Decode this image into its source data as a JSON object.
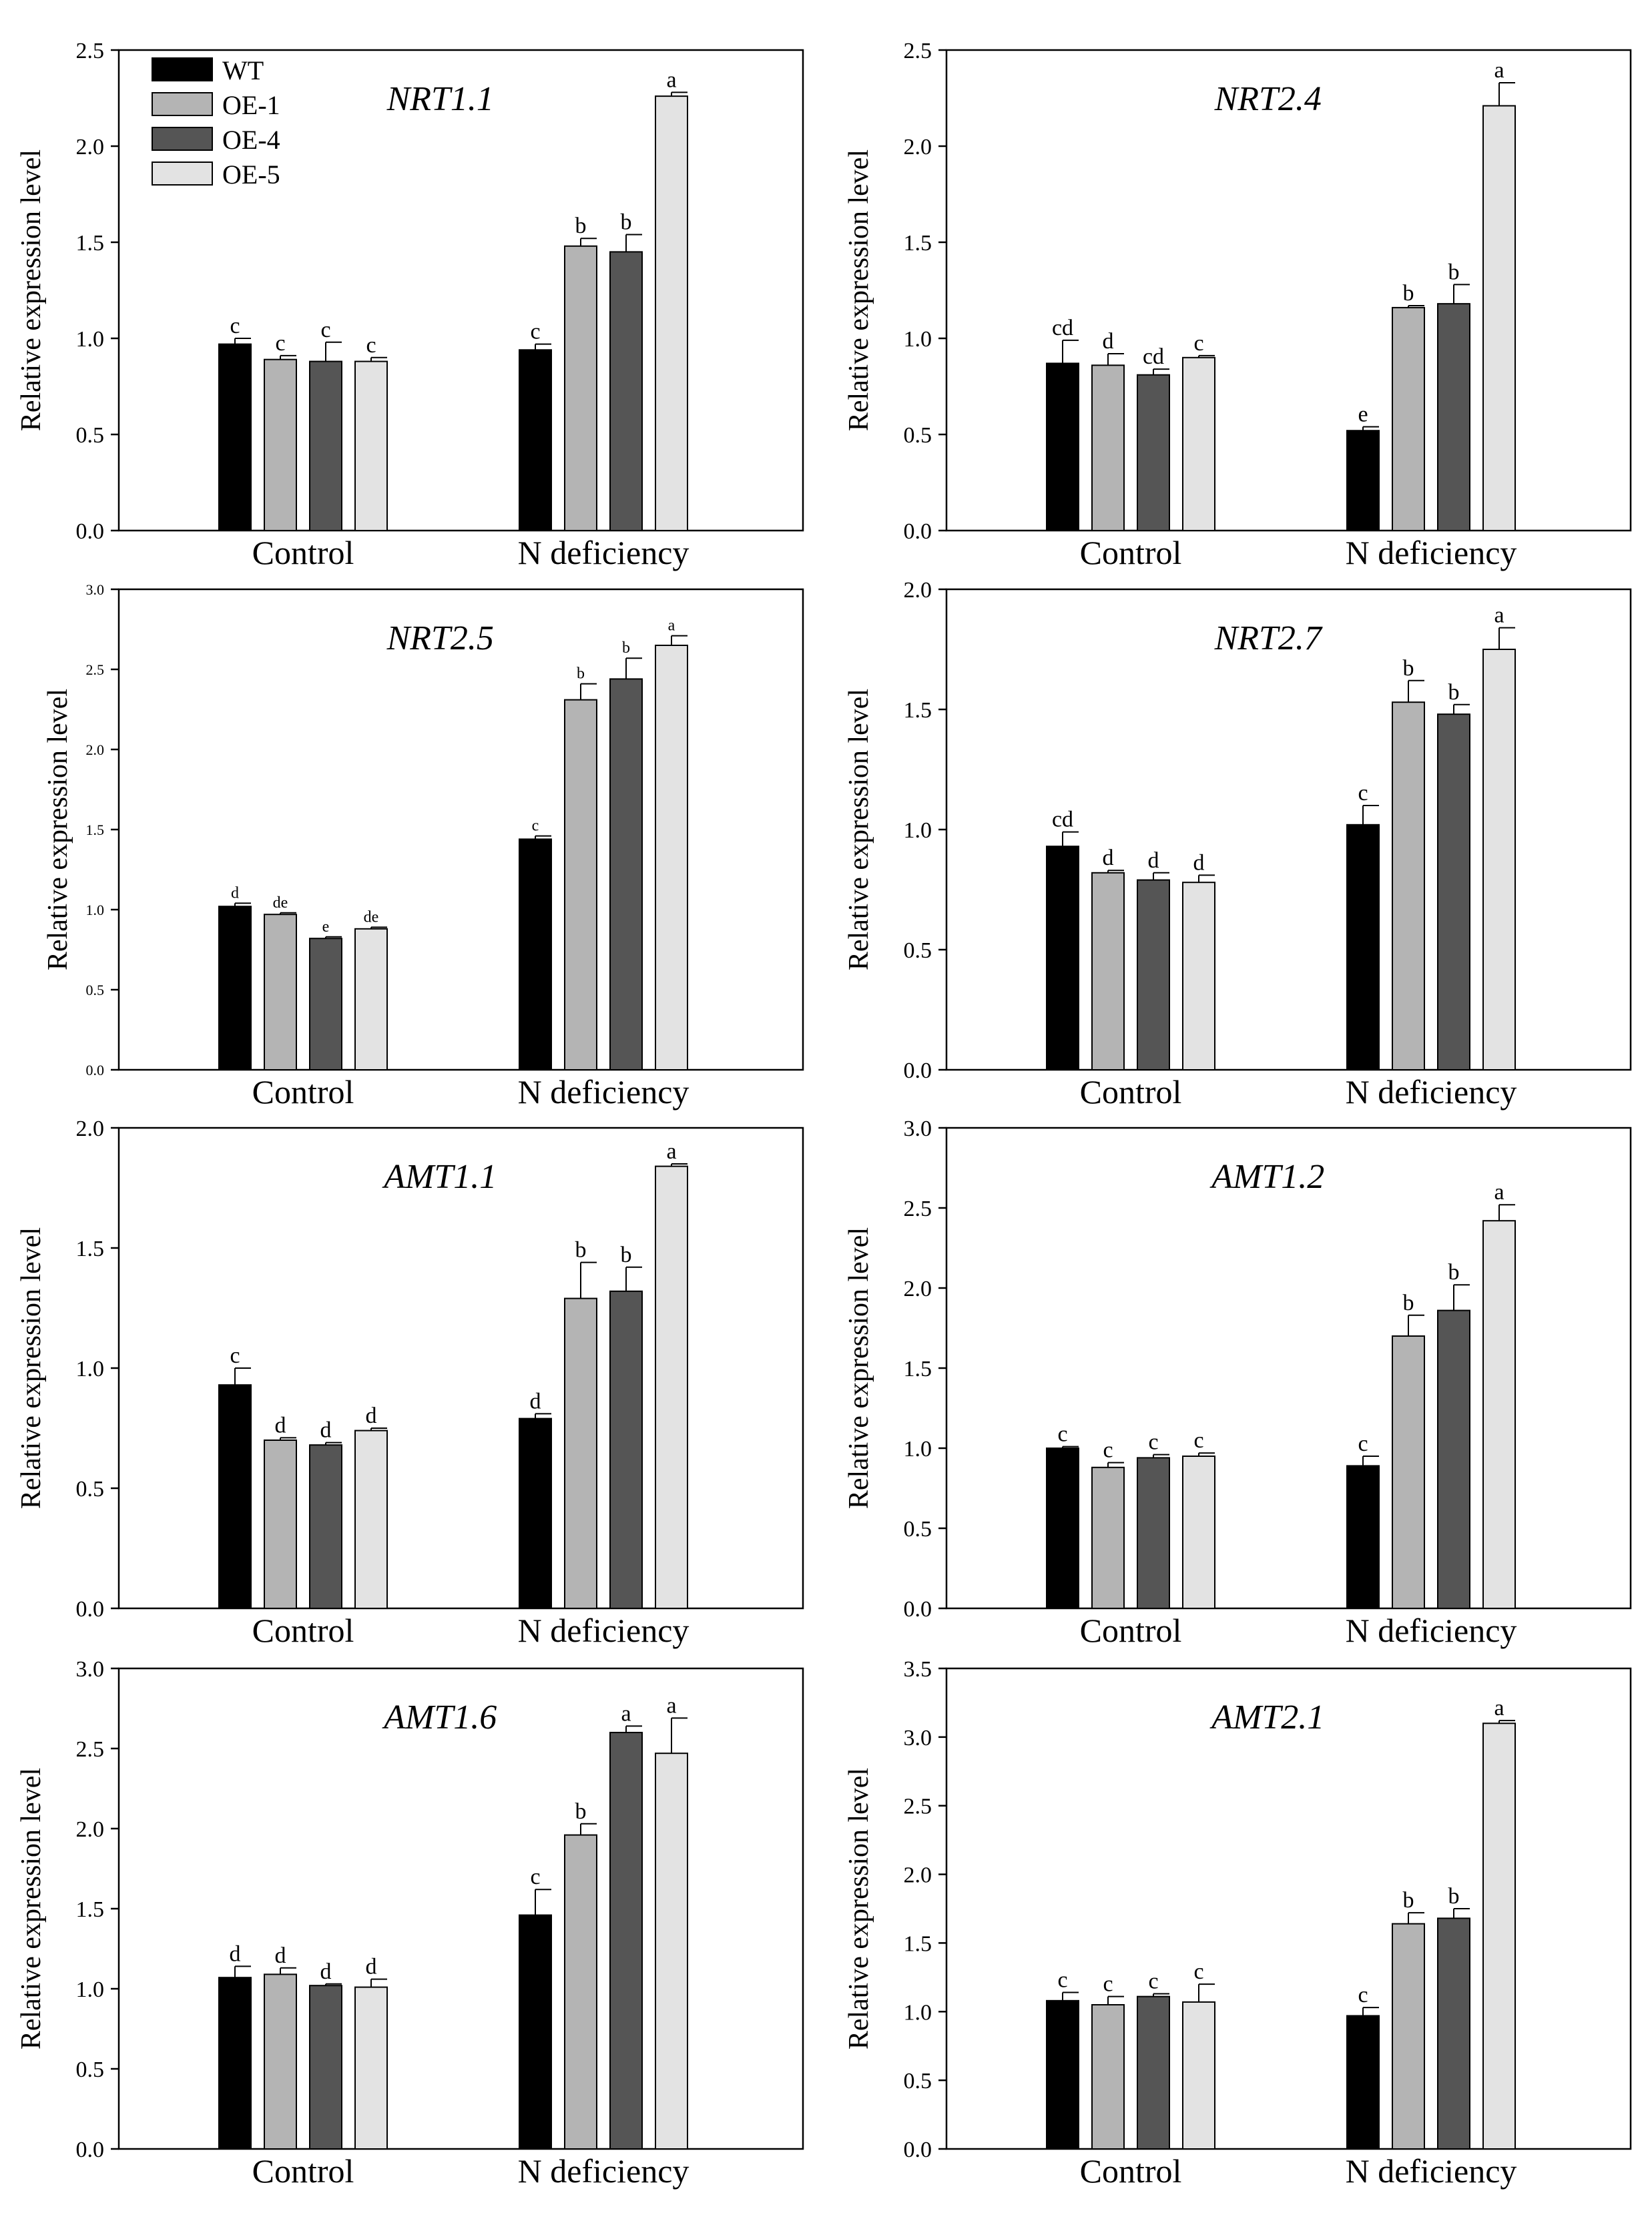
{
  "figure": {
    "groups": [
      "Control",
      "N deficiency"
    ],
    "ylabel": "Relative expression level",
    "legend": [
      {
        "label": "WT",
        "color": "#000000"
      },
      {
        "label": "OE-1",
        "color": "#b4b4b4"
      },
      {
        "label": "OE-4",
        "color": "#555555"
      },
      {
        "label": "OE-5",
        "color": "#e3e3e3"
      }
    ]
  },
  "chart_data": [
    {
      "type": "bar",
      "title": "NRT1.1",
      "xlabel": "",
      "ylabel": "Relative expression level",
      "ylim": [
        0,
        2.5
      ],
      "yticks": [
        "0.0",
        "0.5",
        "1.0",
        "1.5",
        "2.0",
        "2.5"
      ],
      "legend": "top-left",
      "categories": [
        "Control",
        "N deficiency"
      ],
      "series": [
        {
          "name": "WT",
          "values": [
            0.97,
            0.94
          ],
          "errors": [
            0.03,
            0.03
          ],
          "labels": [
            "c",
            "c"
          ]
        },
        {
          "name": "OE-1",
          "values": [
            0.89,
            1.48
          ],
          "errors": [
            0.02,
            0.04
          ],
          "labels": [
            "c",
            "b"
          ]
        },
        {
          "name": "OE-4",
          "values": [
            0.88,
            1.45
          ],
          "errors": [
            0.1,
            0.09
          ],
          "labels": [
            "c",
            "b"
          ]
        },
        {
          "name": "OE-5",
          "values": [
            0.88,
            2.26
          ],
          "errors": [
            0.02,
            0.02
          ],
          "labels": [
            "c",
            "a"
          ]
        }
      ]
    },
    {
      "type": "bar",
      "title": "NRT2.4",
      "xlabel": "",
      "ylabel": "Relative expression level",
      "ylim": [
        0,
        2.5
      ],
      "yticks": [
        "0.0",
        "0.5",
        "1.0",
        "1.5",
        "2.0",
        "2.5"
      ],
      "categories": [
        "Control",
        "N deficiency"
      ],
      "series": [
        {
          "name": "WT",
          "values": [
            0.87,
            0.52
          ],
          "errors": [
            0.12,
            0.02
          ],
          "labels": [
            "cd",
            "e"
          ]
        },
        {
          "name": "OE-1",
          "values": [
            0.86,
            1.16
          ],
          "errors": [
            0.06,
            0.01
          ],
          "labels": [
            "d",
            "b"
          ]
        },
        {
          "name": "OE-4",
          "values": [
            0.81,
            1.18
          ],
          "errors": [
            0.03,
            0.1
          ],
          "labels": [
            "cd",
            "b"
          ]
        },
        {
          "name": "OE-5",
          "values": [
            0.9,
            2.21
          ],
          "errors": [
            0.01,
            0.12
          ],
          "labels": [
            "c",
            "a"
          ]
        }
      ]
    },
    {
      "type": "bar",
      "title": "NRT2.5",
      "xlabel": "",
      "ylabel": "Relative expression level",
      "ylim": [
        0,
        3.0
      ],
      "yticks": [
        "0.0",
        "0.5",
        "1.0",
        "1.5",
        "2.0",
        "2.5",
        "3.0"
      ],
      "categories": [
        "Control",
        "N deficiency"
      ],
      "series": [
        {
          "name": "WT",
          "values": [
            1.02,
            1.44
          ],
          "errors": [
            0.02,
            0.02
          ],
          "labels": [
            "d",
            "c"
          ]
        },
        {
          "name": "OE-1",
          "values": [
            0.97,
            2.31
          ],
          "errors": [
            0.01,
            0.1
          ],
          "labels": [
            "de",
            "b"
          ]
        },
        {
          "name": "OE-4",
          "values": [
            0.82,
            2.44
          ],
          "errors": [
            0.01,
            0.13
          ],
          "labels": [
            "e",
            "b"
          ]
        },
        {
          "name": "OE-5",
          "values": [
            0.88,
            2.65
          ],
          "errors": [
            0.01,
            0.06
          ],
          "labels": [
            "de",
            "a"
          ]
        }
      ]
    },
    {
      "type": "bar",
      "title": "NRT2.7",
      "xlabel": "",
      "ylabel": "Relative expression level",
      "ylim": [
        0,
        2.0
      ],
      "yticks": [
        "0.0",
        "0.5",
        "1.0",
        "1.5",
        "2.0"
      ],
      "categories": [
        "Control",
        "N deficiency"
      ],
      "series": [
        {
          "name": "WT",
          "values": [
            0.93,
            1.02
          ],
          "errors": [
            0.06,
            0.08
          ],
          "labels": [
            "cd",
            "c"
          ]
        },
        {
          "name": "OE-1",
          "values": [
            0.82,
            1.53
          ],
          "errors": [
            0.01,
            0.09
          ],
          "labels": [
            "d",
            "b"
          ]
        },
        {
          "name": "OE-4",
          "values": [
            0.79,
            1.48
          ],
          "errors": [
            0.03,
            0.04
          ],
          "labels": [
            "d",
            "b"
          ]
        },
        {
          "name": "OE-5",
          "values": [
            0.78,
            1.75
          ],
          "errors": [
            0.03,
            0.09
          ],
          "labels": [
            "d",
            "a"
          ]
        }
      ]
    },
    {
      "type": "bar",
      "title": "AMT1.1",
      "xlabel": "",
      "ylabel": "Relative expression level",
      "ylim": [
        0,
        2.0
      ],
      "yticks": [
        "0.0",
        "0.5",
        "1.0",
        "1.5",
        "2.0"
      ],
      "categories": [
        "Control",
        "N deficiency"
      ],
      "series": [
        {
          "name": "WT",
          "values": [
            0.93,
            0.79
          ],
          "errors": [
            0.07,
            0.02
          ],
          "labels": [
            "c",
            "d"
          ]
        },
        {
          "name": "OE-1",
          "values": [
            0.7,
            1.29
          ],
          "errors": [
            0.01,
            0.15
          ],
          "labels": [
            "d",
            "b"
          ]
        },
        {
          "name": "OE-4",
          "values": [
            0.68,
            1.32
          ],
          "errors": [
            0.01,
            0.1
          ],
          "labels": [
            "d",
            "b"
          ]
        },
        {
          "name": "OE-5",
          "values": [
            0.74,
            1.84
          ],
          "errors": [
            0.01,
            0.01
          ],
          "labels": [
            "d",
            "a"
          ]
        }
      ]
    },
    {
      "type": "bar",
      "title": "AMT1.2",
      "xlabel": "",
      "ylabel": "Relative expression level",
      "ylim": [
        0,
        3.0
      ],
      "yticks": [
        "0.0",
        "0.5",
        "1.0",
        "1.5",
        "2.0",
        "2.5",
        "3.0"
      ],
      "categories": [
        "Control",
        "N deficiency"
      ],
      "series": [
        {
          "name": "WT",
          "values": [
            1.0,
            0.89
          ],
          "errors": [
            0.01,
            0.06
          ],
          "labels": [
            "c",
            "c"
          ]
        },
        {
          "name": "OE-1",
          "values": [
            0.88,
            1.7
          ],
          "errors": [
            0.03,
            0.13
          ],
          "labels": [
            "c",
            "b"
          ]
        },
        {
          "name": "OE-4",
          "values": [
            0.94,
            1.86
          ],
          "errors": [
            0.02,
            0.16
          ],
          "labels": [
            "c",
            "b"
          ]
        },
        {
          "name": "OE-5",
          "values": [
            0.95,
            2.42
          ],
          "errors": [
            0.02,
            0.1
          ],
          "labels": [
            "c",
            "a"
          ]
        }
      ]
    },
    {
      "type": "bar",
      "title": "AMT1.6",
      "xlabel": "",
      "ylabel": "Relative expression level",
      "ylim": [
        0,
        3.0
      ],
      "yticks": [
        "0.0",
        "0.5",
        "1.0",
        "1.5",
        "2.0",
        "2.5",
        "3.0"
      ],
      "categories": [
        "Control",
        "N deficiency"
      ],
      "series": [
        {
          "name": "WT",
          "values": [
            1.07,
            1.46
          ],
          "errors": [
            0.07,
            0.16
          ],
          "labels": [
            "d",
            "c"
          ]
        },
        {
          "name": "OE-1",
          "values": [
            1.09,
            1.96
          ],
          "errors": [
            0.04,
            0.07
          ],
          "labels": [
            "d",
            "b"
          ]
        },
        {
          "name": "OE-4",
          "values": [
            1.02,
            2.6
          ],
          "errors": [
            0.01,
            0.04
          ],
          "labels": [
            "d",
            "a"
          ]
        },
        {
          "name": "OE-5",
          "values": [
            1.01,
            2.47
          ],
          "errors": [
            0.05,
            0.22
          ],
          "labels": [
            "d",
            "a"
          ]
        }
      ]
    },
    {
      "type": "bar",
      "title": "AMT2.1",
      "xlabel": "",
      "ylabel": "Relative expression level",
      "ylim": [
        0,
        3.5
      ],
      "yticks": [
        "0.0",
        "0.5",
        "1.0",
        "1.5",
        "2.0",
        "2.5",
        "3.0",
        "3.5"
      ],
      "categories": [
        "Control",
        "N deficiency"
      ],
      "series": [
        {
          "name": "WT",
          "values": [
            1.08,
            0.97
          ],
          "errors": [
            0.06,
            0.06
          ],
          "labels": [
            "c",
            "c"
          ]
        },
        {
          "name": "OE-1",
          "values": [
            1.05,
            1.64
          ],
          "errors": [
            0.06,
            0.08
          ],
          "labels": [
            "c",
            "b"
          ]
        },
        {
          "name": "OE-4",
          "values": [
            1.11,
            1.68
          ],
          "errors": [
            0.02,
            0.07
          ],
          "labels": [
            "c",
            "b"
          ]
        },
        {
          "name": "OE-5",
          "values": [
            1.07,
            3.1
          ],
          "errors": [
            0.13,
            0.02
          ],
          "labels": [
            "c",
            "a"
          ]
        }
      ]
    }
  ]
}
